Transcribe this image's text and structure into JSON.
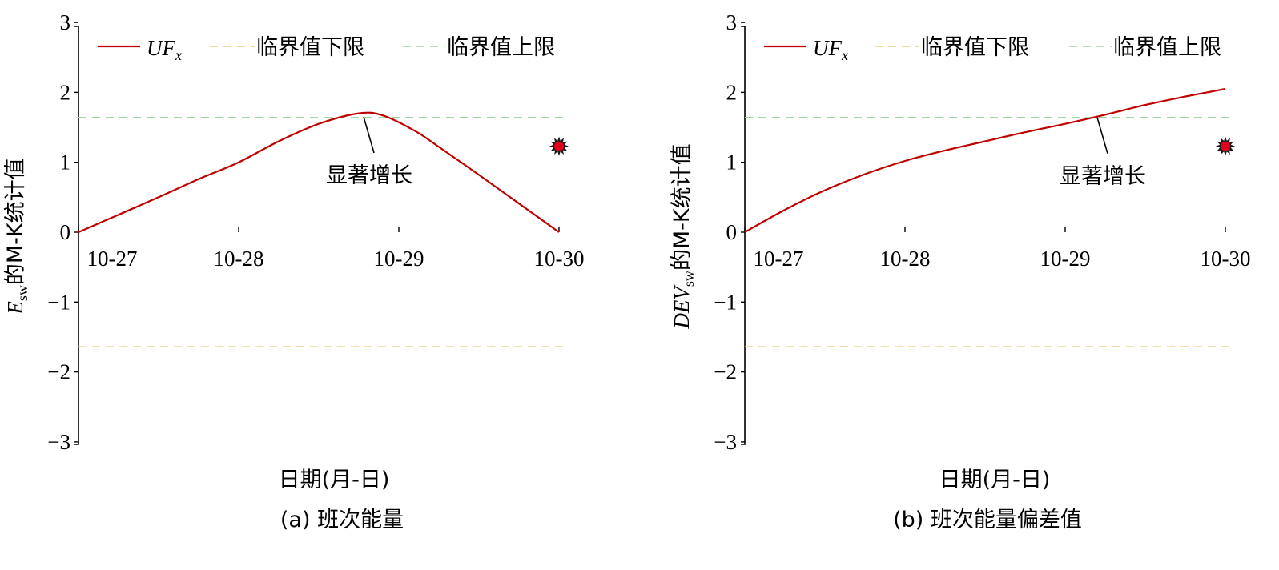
{
  "chart_data": [
    {
      "type": "line",
      "panel": "a",
      "caption": "(a) 班次能量",
      "xlabel": "日期(月-日)",
      "ylabel_main": "E",
      "ylabel_sub": "sw",
      "ylabel_rest": "的M-K统计值",
      "categories": [
        "10-27",
        "10-28",
        "10-29",
        "10-30"
      ],
      "ylim": [
        -3,
        3
      ],
      "yticks": [
        -3,
        -2,
        -1,
        0,
        1,
        2,
        3
      ],
      "ytick_labels": [
        "−3",
        "−2",
        "−1",
        "0",
        "1",
        "2",
        "3"
      ],
      "series": [
        {
          "legend_main": "UF",
          "legend_sub": "x",
          "x": [
            0,
            0.25,
            0.5,
            0.75,
            1.0,
            1.25,
            1.5,
            1.75,
            1.9,
            2.1,
            2.25,
            2.5,
            2.75,
            3.0
          ],
          "values": [
            0,
            0.25,
            0.5,
            0.76,
            1.0,
            1.3,
            1.55,
            1.7,
            1.67,
            1.45,
            1.22,
            0.82,
            0.41,
            0
          ],
          "color": "#c00000"
        }
      ],
      "thresholds": [
        {
          "label": "临界值下限",
          "value": -1.64,
          "color": "#e8cf7a"
        },
        {
          "label": "临界值上限",
          "value": 1.64,
          "color": "#9fd3a0"
        }
      ],
      "annotation": {
        "text": "显著增长",
        "x": 1.78,
        "y": 1.65
      },
      "marker": {
        "x": 3.0,
        "y": 1.23,
        "color": "#e0001b"
      }
    },
    {
      "type": "line",
      "panel": "b",
      "caption": "(b) 班次能量偏差值",
      "xlabel": "日期(月-日)",
      "ylabel_main": "DEV",
      "ylabel_sub": "sw",
      "ylabel_rest": "的M-K统计值",
      "categories": [
        "10-27",
        "10-28",
        "10-29",
        "10-30"
      ],
      "ylim": [
        -3,
        3
      ],
      "yticks": [
        -3,
        -2,
        -1,
        0,
        1,
        2,
        3
      ],
      "ytick_labels": [
        "−3",
        "−2",
        "−1",
        "0",
        "1",
        "2",
        "3"
      ],
      "series": [
        {
          "legend_main": "UF",
          "legend_sub": "x",
          "x": [
            0,
            0.25,
            0.5,
            0.75,
            1.0,
            1.25,
            1.5,
            1.75,
            2.0,
            2.25,
            2.5,
            2.75,
            3.0
          ],
          "values": [
            0,
            0.32,
            0.6,
            0.83,
            1.02,
            1.17,
            1.3,
            1.43,
            1.55,
            1.68,
            1.82,
            1.94,
            2.05
          ],
          "color": "#c00000"
        }
      ],
      "thresholds": [
        {
          "label": "临界值下限",
          "value": -1.64,
          "color": "#e8cf7a"
        },
        {
          "label": "临界值上限",
          "value": 1.64,
          "color": "#9fd3a0"
        }
      ],
      "annotation": {
        "text": "显著增长",
        "x": 2.2,
        "y": 1.64
      },
      "marker": {
        "x": 3.0,
        "y": 1.23,
        "color": "#e0001b"
      }
    }
  ]
}
